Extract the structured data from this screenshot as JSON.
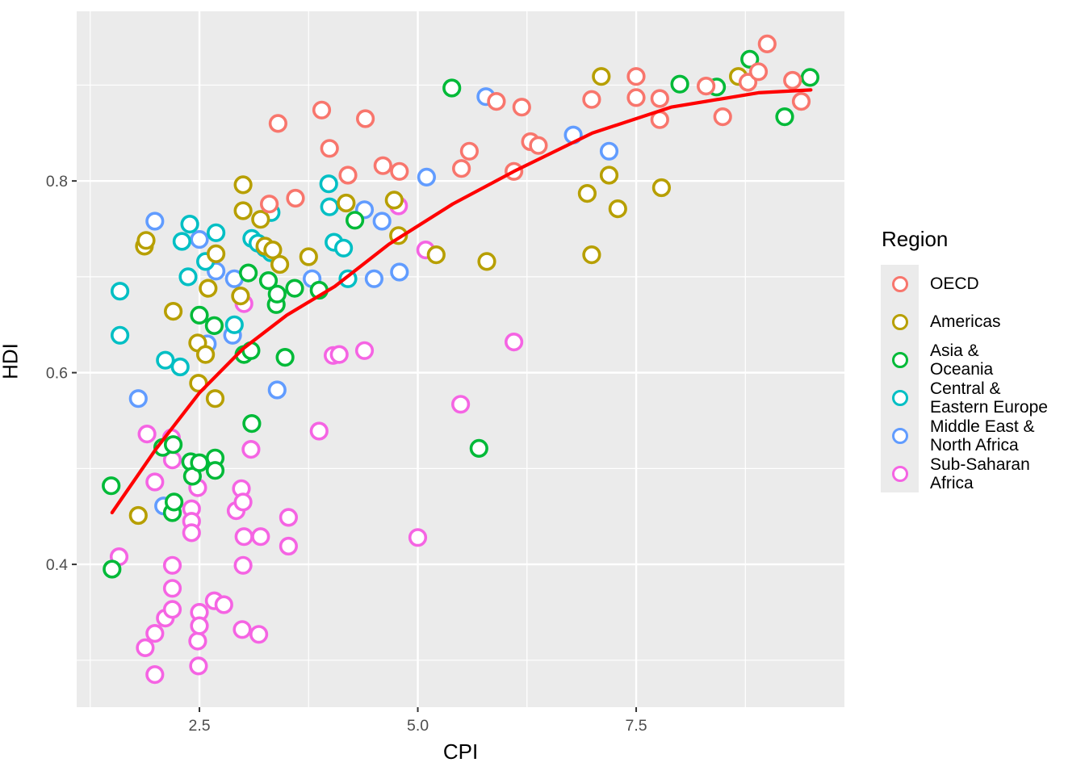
{
  "chart_data": {
    "type": "scatter",
    "title": "",
    "xlabel": "CPI",
    "ylabel": "HDI",
    "xlim": [
      1.095,
      9.884
    ],
    "ylim": [
      0.251,
      0.977
    ],
    "grid": true,
    "panel_bg": "#EBEBEB",
    "grid_color": "#FFFFFF",
    "tick_color": "#333333",
    "tick_label_color": "#4D4D4D",
    "x_ticks": {
      "major": [
        2.5,
        5.0,
        7.5
      ],
      "labels": [
        "2.5",
        "5.0",
        "7.5"
      ],
      "minor": [
        1.25,
        3.75,
        6.25,
        8.75
      ]
    },
    "y_ticks": {
      "major": [
        0.4,
        0.6,
        0.8
      ],
      "labels": [
        "0.4",
        "0.6",
        "0.8"
      ],
      "minor": [
        0.3,
        0.5,
        0.7,
        0.9
      ]
    },
    "legend": {
      "title": "Region",
      "position": "right"
    },
    "series": [
      {
        "name": "OECD",
        "label_lines": [
          "OECD"
        ],
        "color": "#F8766D",
        "points": [
          [
            3.4,
            0.86
          ],
          [
            3.9,
            0.874
          ],
          [
            3.99,
            0.834
          ],
          [
            4.4,
            0.865
          ],
          [
            3.6,
            0.782
          ],
          [
            3.3,
            0.776
          ],
          [
            4.6,
            0.816
          ],
          [
            4.79,
            0.81
          ],
          [
            4.2,
            0.806
          ],
          [
            5.59,
            0.831
          ],
          [
            5.5,
            0.813
          ],
          [
            5.9,
            0.883
          ],
          [
            6.19,
            0.877
          ],
          [
            6.29,
            0.841
          ],
          [
            6.38,
            0.837
          ],
          [
            6.1,
            0.81
          ],
          [
            6.99,
            0.885
          ],
          [
            7.5,
            0.887
          ],
          [
            7.5,
            0.909
          ],
          [
            7.77,
            0.886
          ],
          [
            7.77,
            0.864
          ],
          [
            8.3,
            0.899
          ],
          [
            8.49,
            0.867
          ],
          [
            8.78,
            0.903
          ],
          [
            8.9,
            0.914
          ],
          [
            9.0,
            0.943
          ],
          [
            9.29,
            0.905
          ],
          [
            9.39,
            0.883
          ]
        ]
      },
      {
        "name": "Americas",
        "label_lines": [
          "Americas"
        ],
        "color": "#B79F00",
        "points": [
          [
            1.87,
            0.732
          ],
          [
            1.89,
            0.738
          ],
          [
            1.8,
            0.451
          ],
          [
            2.2,
            0.664
          ],
          [
            2.48,
            0.631
          ],
          [
            2.57,
            0.619
          ],
          [
            2.49,
            0.589
          ],
          [
            2.68,
            0.573
          ],
          [
            2.6,
            0.688
          ],
          [
            2.69,
            0.724
          ],
          [
            2.97,
            0.68
          ],
          [
            3.0,
            0.796
          ],
          [
            3.0,
            0.769
          ],
          [
            3.2,
            0.76
          ],
          [
            3.25,
            0.732
          ],
          [
            3.34,
            0.728
          ],
          [
            3.42,
            0.713
          ],
          [
            3.75,
            0.721
          ],
          [
            4.18,
            0.777
          ],
          [
            4.73,
            0.78
          ],
          [
            4.78,
            0.743
          ],
          [
            5.21,
            0.723
          ],
          [
            5.79,
            0.716
          ],
          [
            6.94,
            0.787
          ],
          [
            6.99,
            0.723
          ],
          [
            7.1,
            0.909
          ],
          [
            7.19,
            0.806
          ],
          [
            7.29,
            0.771
          ],
          [
            7.79,
            0.793
          ],
          [
            8.67,
            0.909
          ]
        ]
      },
      {
        "name": "Asia & Oceania",
        "label_lines": [
          "Asia &",
          "Oceania"
        ],
        "color": "#00BA38",
        "points": [
          [
            1.49,
            0.482
          ],
          [
            1.5,
            0.395
          ],
          [
            2.08,
            0.522
          ],
          [
            2.2,
            0.525
          ],
          [
            2.19,
            0.454
          ],
          [
            2.21,
            0.465
          ],
          [
            2.4,
            0.507
          ],
          [
            2.42,
            0.492
          ],
          [
            2.5,
            0.506
          ],
          [
            2.5,
            0.66
          ],
          [
            2.67,
            0.649
          ],
          [
            2.68,
            0.511
          ],
          [
            2.68,
            0.498
          ],
          [
            3.01,
            0.619
          ],
          [
            3.06,
            0.704
          ],
          [
            3.09,
            0.623
          ],
          [
            3.1,
            0.547
          ],
          [
            3.29,
            0.696
          ],
          [
            3.38,
            0.671
          ],
          [
            3.39,
            0.682
          ],
          [
            3.48,
            0.616
          ],
          [
            3.59,
            0.688
          ],
          [
            3.87,
            0.686
          ],
          [
            4.28,
            0.759
          ],
          [
            5.39,
            0.897
          ],
          [
            5.7,
            0.521
          ],
          [
            8.0,
            0.901
          ],
          [
            8.42,
            0.898
          ],
          [
            8.8,
            0.927
          ],
          [
            9.2,
            0.867
          ],
          [
            9.49,
            0.908
          ]
        ]
      },
      {
        "name": "Central & Eastern Europe",
        "label_lines": [
          "Central &",
          "Eastern Europe"
        ],
        "color": "#00BFC4",
        "points": [
          [
            1.59,
            0.685
          ],
          [
            1.59,
            0.639
          ],
          [
            2.11,
            0.613
          ],
          [
            2.28,
            0.606
          ],
          [
            2.3,
            0.737
          ],
          [
            2.37,
            0.7
          ],
          [
            2.39,
            0.755
          ],
          [
            2.57,
            0.716
          ],
          [
            2.69,
            0.746
          ],
          [
            2.9,
            0.65
          ],
          [
            3.1,
            0.74
          ],
          [
            3.17,
            0.735
          ],
          [
            3.25,
            0.73
          ],
          [
            3.32,
            0.725
          ],
          [
            3.32,
            0.767
          ],
          [
            3.98,
            0.797
          ],
          [
            3.99,
            0.773
          ],
          [
            4.04,
            0.736
          ],
          [
            4.15,
            0.73
          ],
          [
            4.2,
            0.698
          ]
        ]
      },
      {
        "name": "Middle East & North Africa",
        "label_lines": [
          "Middle East &",
          "North Africa"
        ],
        "color": "#619CFF",
        "points": [
          [
            1.8,
            0.573
          ],
          [
            1.99,
            0.758
          ],
          [
            2.09,
            0.461
          ],
          [
            2.5,
            0.739
          ],
          [
            2.59,
            0.63
          ],
          [
            2.69,
            0.706
          ],
          [
            2.88,
            0.639
          ],
          [
            2.9,
            0.698
          ],
          [
            3.39,
            0.582
          ],
          [
            3.79,
            0.698
          ],
          [
            4.39,
            0.77
          ],
          [
            4.5,
            0.698
          ],
          [
            4.59,
            0.758
          ],
          [
            4.79,
            0.705
          ],
          [
            5.1,
            0.804
          ],
          [
            5.78,
            0.888
          ],
          [
            6.78,
            0.848
          ],
          [
            7.19,
            0.831
          ]
        ]
      },
      {
        "name": "Sub-Saharan Africa",
        "label_lines": [
          "Sub-Saharan",
          "Africa"
        ],
        "color": "#F564E3",
        "points": [
          [
            1.58,
            0.408
          ],
          [
            1.88,
            0.313
          ],
          [
            1.9,
            0.536
          ],
          [
            1.99,
            0.486
          ],
          [
            1.99,
            0.328
          ],
          [
            1.99,
            0.285
          ],
          [
            2.11,
            0.344
          ],
          [
            2.18,
            0.532
          ],
          [
            2.19,
            0.509
          ],
          [
            2.19,
            0.399
          ],
          [
            2.19,
            0.375
          ],
          [
            2.19,
            0.353
          ],
          [
            2.41,
            0.458
          ],
          [
            2.41,
            0.445
          ],
          [
            2.41,
            0.433
          ],
          [
            2.48,
            0.48
          ],
          [
            2.48,
            0.32
          ],
          [
            2.49,
            0.294
          ],
          [
            2.5,
            0.35
          ],
          [
            2.5,
            0.336
          ],
          [
            2.67,
            0.362
          ],
          [
            2.78,
            0.358
          ],
          [
            2.92,
            0.456
          ],
          [
            2.98,
            0.479
          ],
          [
            3.0,
            0.465
          ],
          [
            3.0,
            0.399
          ],
          [
            2.99,
            0.332
          ],
          [
            3.01,
            0.429
          ],
          [
            3.01,
            0.672
          ],
          [
            3.09,
            0.52
          ],
          [
            3.18,
            0.327
          ],
          [
            3.2,
            0.429
          ],
          [
            3.52,
            0.449
          ],
          [
            3.52,
            0.419
          ],
          [
            3.87,
            0.539
          ],
          [
            4.03,
            0.618
          ],
          [
            4.1,
            0.619
          ],
          [
            4.39,
            0.623
          ],
          [
            4.78,
            0.774
          ],
          [
            5.0,
            0.428
          ],
          [
            5.09,
            0.728
          ],
          [
            5.49,
            0.567
          ],
          [
            6.1,
            0.632
          ]
        ]
      }
    ],
    "trend_line": {
      "color": "#FF0000",
      "width": 4.2,
      "points": [
        [
          1.5,
          0.454
        ],
        [
          2.0,
          0.52
        ],
        [
          2.5,
          0.579
        ],
        [
          3.0,
          0.625
        ],
        [
          3.5,
          0.66
        ],
        [
          4.05,
          0.69
        ],
        [
          4.67,
          0.734
        ],
        [
          5.4,
          0.776
        ],
        [
          6.1,
          0.81
        ],
        [
          7.0,
          0.85
        ],
        [
          7.9,
          0.877
        ],
        [
          8.9,
          0.892
        ],
        [
          9.5,
          0.895
        ]
      ]
    }
  }
}
